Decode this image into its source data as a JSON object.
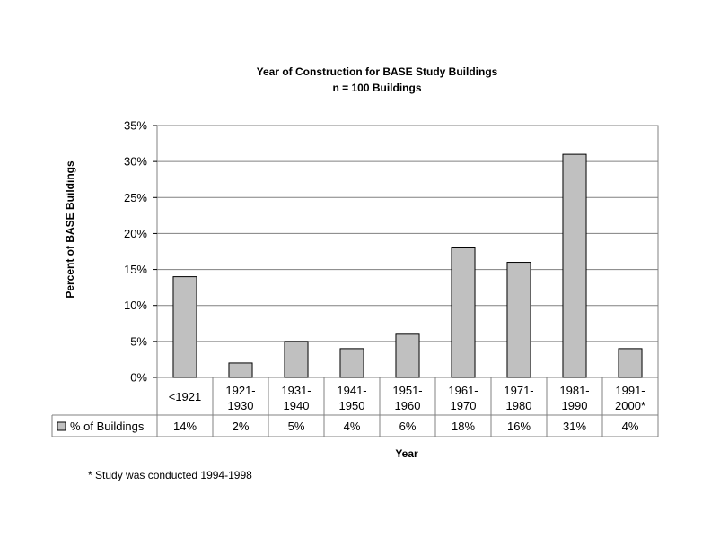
{
  "chart_data": {
    "type": "bar",
    "title": "Year of Construction for BASE Study Buildings",
    "subtitle": "n = 100 Buildings",
    "xlabel": "Year",
    "ylabel": "Percent of BASE Buildings",
    "ylim": [
      0,
      35
    ],
    "yticks": [
      "0%",
      "5%",
      "10%",
      "15%",
      "20%",
      "25%",
      "30%",
      "35%"
    ],
    "categories": [
      [
        "<1921"
      ],
      [
        "1921-",
        "1930"
      ],
      [
        "1931-",
        "1940"
      ],
      [
        "1941-",
        "1950"
      ],
      [
        "1951-",
        "1960"
      ],
      [
        "1961-",
        "1970"
      ],
      [
        "1971-",
        "1980"
      ],
      [
        "1981-",
        "1990"
      ],
      [
        "1991-",
        "2000*"
      ]
    ],
    "series": [
      {
        "name": "% of Buildings",
        "values": [
          14,
          2,
          5,
          4,
          6,
          18,
          16,
          31,
          4
        ],
        "labels": [
          "14%",
          "2%",
          "5%",
          "4%",
          "6%",
          "18%",
          "16%",
          "31%",
          "4%"
        ],
        "color": "#c0c0c0"
      }
    ],
    "grid": true,
    "legend": "data table"
  },
  "footnote": "* Study was conducted 1994-1998"
}
